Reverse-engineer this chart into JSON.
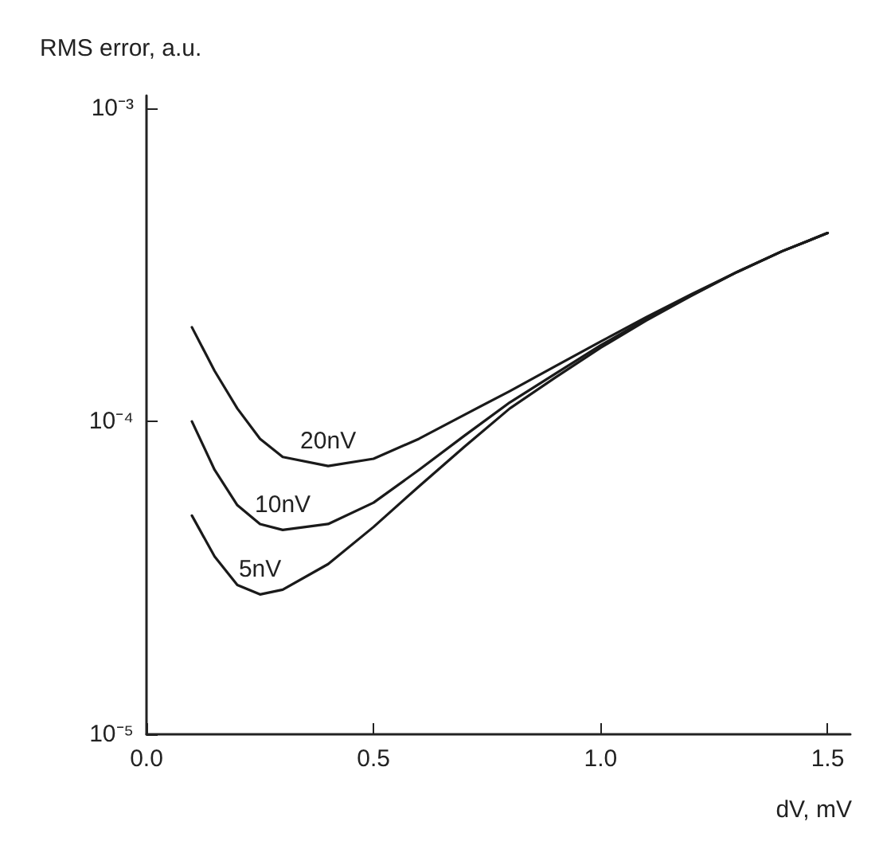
{
  "chart_data": {
    "type": "line",
    "xlabel": "dV, mV",
    "ylabel": "RMS error, a.u.",
    "log": "y",
    "grid": false,
    "legend": false,
    "marker": "none",
    "line_style": "solid",
    "xlim": [
      0,
      1.55
    ],
    "xticks": [
      {
        "value": 0,
        "label": "0.0"
      },
      {
        "value": 0.5,
        "label": "0.5"
      },
      {
        "value": 1,
        "label": "1.0"
      },
      {
        "value": 1.5,
        "label": "1.5"
      }
    ],
    "ylim": [
      1e-05,
      0.0011
    ],
    "yticks": [
      {
        "value": 1e-05,
        "label": "10⁻⁵"
      },
      {
        "value": 0.0001,
        "label": "10⁻⁴"
      },
      {
        "value": 0.001,
        "label": "10⁻³"
      }
    ],
    "x": [
      0.1,
      0.15,
      0.2,
      0.25,
      0.3,
      0.4,
      0.5,
      0.6,
      0.7,
      0.8,
      0.9,
      1.0,
      1.1,
      1.2,
      1.3,
      1.4,
      1.5
    ],
    "series": [
      {
        "name": "20nV",
        "color": "#1a1a1a",
        "values": [
          0.0002,
          0.000145,
          0.00011,
          8.8e-05,
          7.7e-05,
          7.2e-05,
          7.6e-05,
          8.8e-05,
          0.000105,
          0.000125,
          0.00015,
          0.00018,
          0.000215,
          0.000255,
          0.0003,
          0.00035,
          0.0004
        ]
      },
      {
        "name": "10nV",
        "color": "#1a1a1a",
        "values": [
          0.0001,
          7e-05,
          5.4e-05,
          4.7e-05,
          4.5e-05,
          4.7e-05,
          5.5e-05,
          7e-05,
          9e-05,
          0.000115,
          0.000142,
          0.000175,
          0.000212,
          0.000253,
          0.0003,
          0.00035,
          0.0004
        ]
      },
      {
        "name": "5nV",
        "color": "#1a1a1a",
        "values": [
          5e-05,
          3.7e-05,
          3e-05,
          2.8e-05,
          2.9e-05,
          3.5e-05,
          4.6e-05,
          6.2e-05,
          8.3e-05,
          0.00011,
          0.000138,
          0.000172,
          0.00021,
          0.000252,
          0.0003,
          0.00035,
          0.0004
        ]
      }
    ]
  }
}
